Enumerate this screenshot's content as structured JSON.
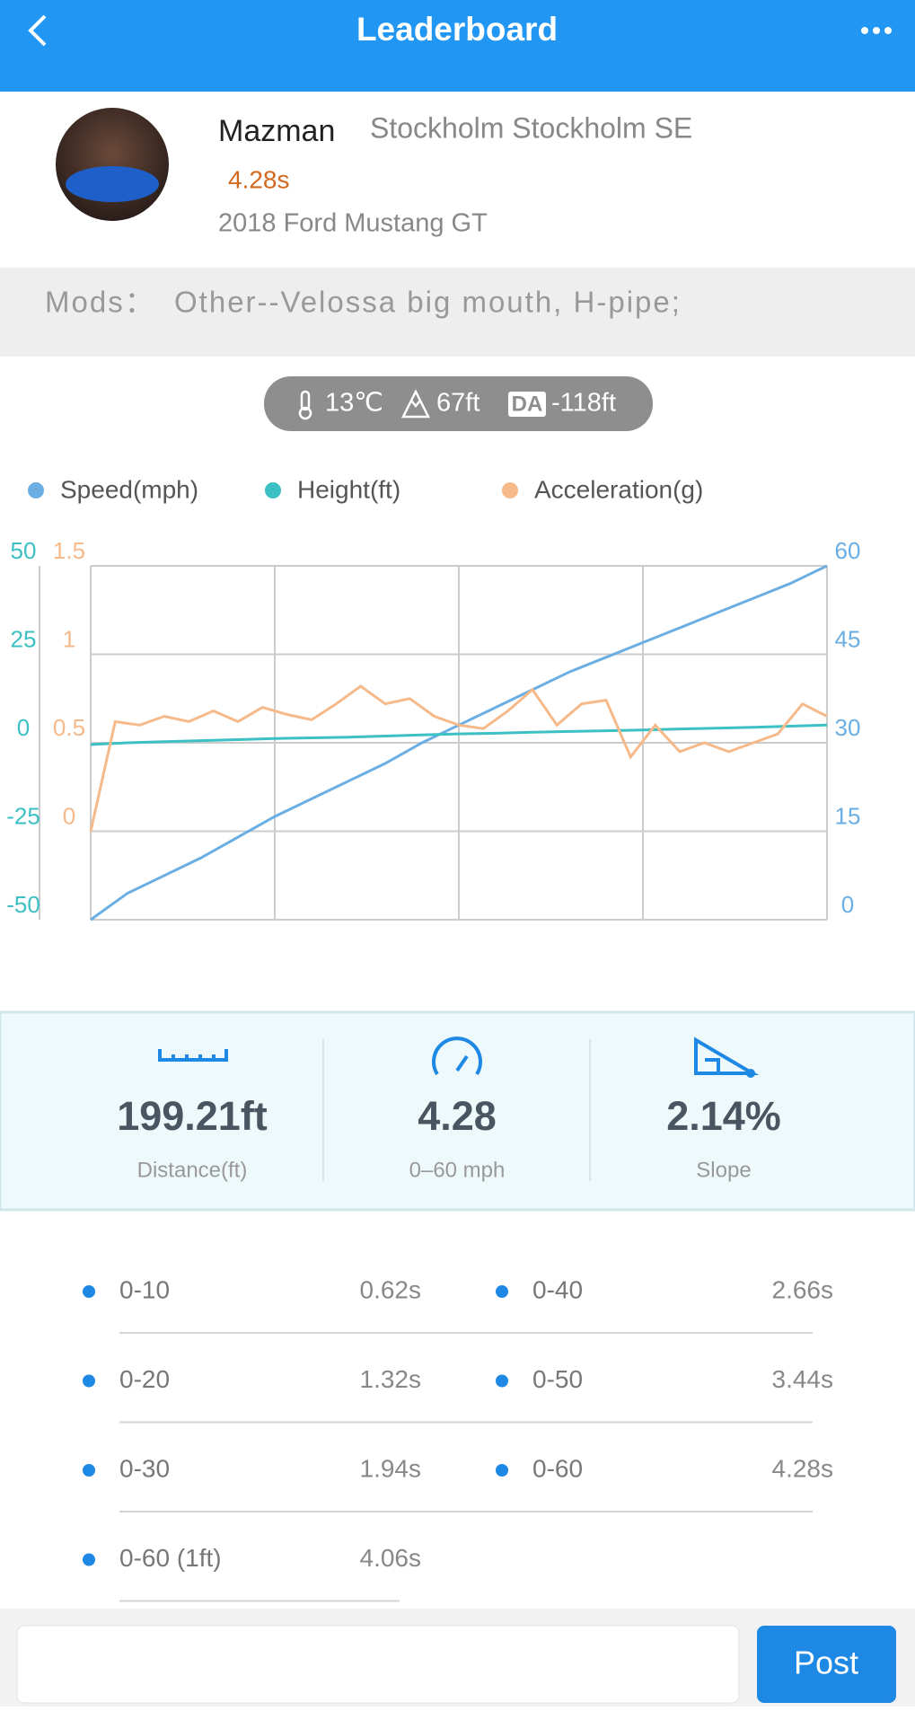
{
  "header": {
    "title": "Leaderboard"
  },
  "profile": {
    "name": "Mazman",
    "location": "Stockholm Stockholm SE",
    "time": "4.28s",
    "car": "2018 Ford Mustang GT"
  },
  "mods": {
    "label": "Mods：",
    "text": "Other--Velossa big mouth, H-pipe;"
  },
  "conditions": {
    "temperature": "13℃",
    "altitude": "67ft",
    "da_badge": "DA",
    "density_altitude": "-118ft"
  },
  "chart_data": {
    "type": "line",
    "grid": true,
    "series": [
      {
        "name": "Speed(mph)",
        "color": "#6aaee3",
        "axis": "y2",
        "values": [
          0,
          4.5,
          7.5,
          10.5,
          14,
          17.5,
          20.5,
          23.5,
          26.5,
          30,
          33,
          36,
          39,
          42,
          44.5,
          47,
          49.5,
          52,
          54.5,
          57,
          60
        ]
      },
      {
        "name": "Height(ft)",
        "color": "#3cc0c4",
        "axis": "y",
        "values": [
          -0.5,
          0,
          0.3,
          0.6,
          0.9,
          1.2,
          1.4,
          1.6,
          1.9,
          2.2,
          2.5,
          2.7,
          3,
          3.2,
          3.4,
          3.6,
          3.9,
          4.1,
          4.4,
          4.7,
          5
        ]
      },
      {
        "name": "Acceleration(g)",
        "color": "#f5b98a",
        "axis": "y3",
        "values": [
          0,
          0.62,
          0.6,
          0.65,
          0.62,
          0.68,
          0.62,
          0.7,
          0.66,
          0.63,
          0.72,
          0.82,
          0.72,
          0.75,
          0.65,
          0.6,
          0.58,
          0.68,
          0.8,
          0.6,
          0.72,
          0.74,
          0.42,
          0.6,
          0.45,
          0.5,
          0.45,
          0.5,
          0.55,
          0.72,
          0.65
        ]
      }
    ],
    "ylim": [
      -50,
      50
    ],
    "yticks": [
      -50,
      -25,
      0,
      25,
      50
    ],
    "y2lim": [
      0,
      60
    ],
    "y2ticks": [
      0,
      15,
      30,
      45,
      60
    ],
    "y3lim": [
      -0.5,
      1.5
    ],
    "y3ticks": [
      0,
      0.5,
      1,
      1.5
    ]
  },
  "stats": [
    {
      "value": "199.21ft",
      "label": "Distance(ft)"
    },
    {
      "value": "4.28",
      "label": "0–60 mph"
    },
    {
      "value": "2.14%",
      "label": "Slope"
    }
  ],
  "splits": [
    {
      "label": "0-10",
      "value": "0.62s"
    },
    {
      "label": "0-40",
      "value": "2.66s"
    },
    {
      "label": "0-20",
      "value": "1.32s"
    },
    {
      "label": "0-50",
      "value": "3.44s"
    },
    {
      "label": "0-30",
      "value": "1.94s"
    },
    {
      "label": "0-60",
      "value": "4.28s"
    },
    {
      "label": "0-60 (1ft)",
      "value": "4.06s"
    }
  ],
  "comment": {
    "button": "Post"
  }
}
